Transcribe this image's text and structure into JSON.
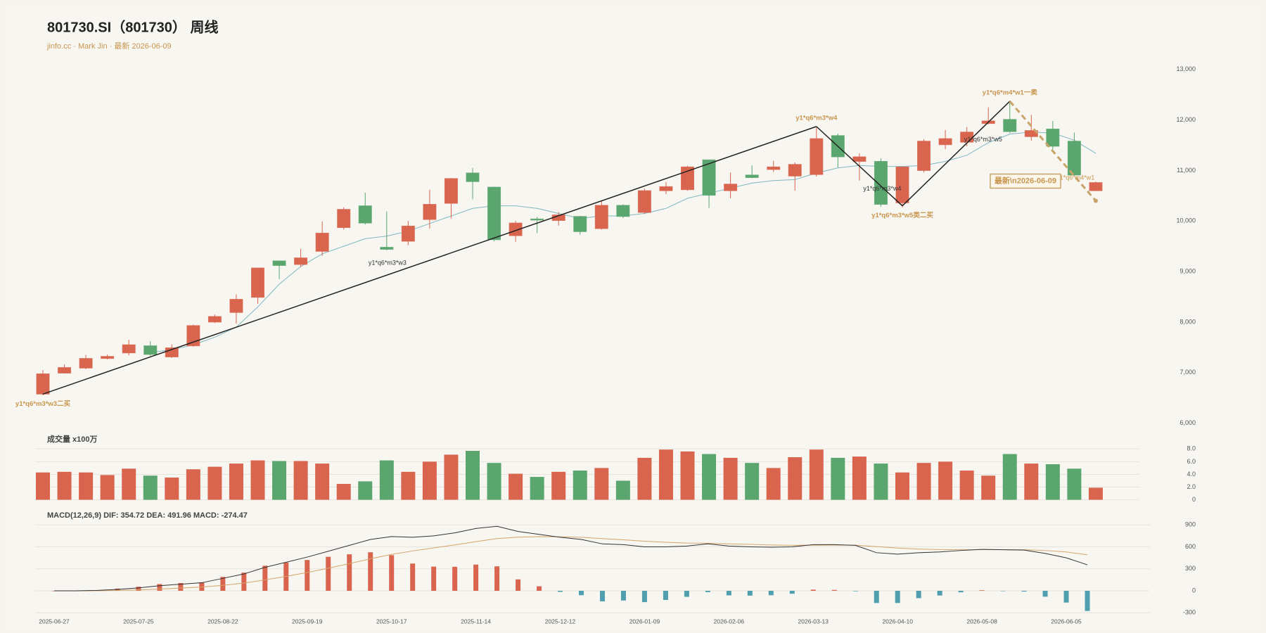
{
  "chart_data": [
    {
      "type": "candlestick",
      "title": "801730.SI（801730） 周线",
      "subtitle": "jinfo.cc · Mark Jin · 最新 2026-06-09",
      "categories": [
        "2025-06-27",
        null,
        null,
        null,
        "2025-07-25",
        null,
        null,
        null,
        "2025-08-22",
        null,
        null,
        null,
        "2025-09-19",
        null,
        null,
        null,
        "2025-10-17",
        null,
        null,
        null,
        "2025-11-14",
        null,
        null,
        null,
        "2025-12-12",
        null,
        null,
        null,
        "2026-01-09",
        null,
        null,
        null,
        "2026-02-06",
        null,
        null,
        null,
        "2026-03-13",
        null,
        null,
        null,
        "2026-04-10",
        null,
        null,
        null,
        "2026-05-08",
        null,
        null,
        null,
        "2026-06-05",
        null
      ],
      "open": [
        6575,
        6990,
        7090,
        7280,
        7390,
        7530,
        7310,
        7530,
        8000,
        8190,
        8490,
        9210,
        9140,
        9400,
        9870,
        10300,
        9480,
        9600,
        10030,
        10350,
        10950,
        10670,
        9710,
        10040,
        10010,
        10090,
        9850,
        10310,
        10170,
        10600,
        10620,
        11210,
        10600,
        10910,
        11020,
        10890,
        10920,
        11690,
        11180,
        11180,
        10360,
        11000,
        11510,
        11560,
        11930,
        12010,
        11670,
        11820,
        11580,
        10600
      ],
      "close": [
        6975,
        7100,
        7280,
        7320,
        7550,
        7360,
        7490,
        7930,
        8110,
        8450,
        9070,
        9120,
        9270,
        9760,
        10230,
        9960,
        9440,
        9900,
        10330,
        10840,
        10780,
        9630,
        9960,
        10020,
        10120,
        9790,
        10310,
        10090,
        10600,
        10680,
        11070,
        10510,
        10730,
        10860,
        11070,
        11120,
        11630,
        11270,
        11270,
        10330,
        11070,
        11580,
        11630,
        11760,
        11980,
        11770,
        11790,
        11480,
        10910,
        10760
      ],
      "high": [
        7050,
        7160,
        7350,
        7360,
        7650,
        7620,
        7560,
        7950,
        8150,
        8550,
        9070,
        9220,
        9450,
        9990,
        10270,
        10560,
        10190,
        10000,
        10620,
        10850,
        11050,
        10680,
        10000,
        10080,
        10180,
        10100,
        10400,
        10330,
        10640,
        10770,
        11090,
        11210,
        10960,
        11100,
        11190,
        11160,
        11850,
        11730,
        11340,
        11240,
        11080,
        11620,
        11800,
        11860,
        12250,
        12380,
        12100,
        11980,
        11750,
        10780
      ],
      "low": [
        6550,
        6980,
        7070,
        7260,
        7340,
        7330,
        7290,
        7510,
        7980,
        7970,
        8360,
        8850,
        9090,
        9310,
        9830,
        9930,
        9420,
        9520,
        9850,
        10050,
        10430,
        9600,
        9590,
        9760,
        9910,
        9730,
        9830,
        10060,
        10140,
        10530,
        10600,
        10260,
        10450,
        10850,
        10970,
        10600,
        10880,
        11060,
        10800,
        10280,
        10270,
        10960,
        11420,
        11480,
        11910,
        11740,
        11590,
        11420,
        10900,
        10600
      ],
      "ma": [
        null,
        null,
        null,
        null,
        null,
        7400,
        7450,
        7550,
        7700,
        7900,
        8300,
        8750,
        9100,
        9350,
        9500,
        9650,
        9700,
        9800,
        9950,
        10100,
        10250,
        10300,
        10300,
        10250,
        10150,
        10050,
        10100,
        10100,
        10150,
        10250,
        10450,
        10550,
        10650,
        10750,
        10800,
        10820,
        10950,
        11050,
        11100,
        11080,
        11080,
        11100,
        11180,
        11300,
        11550,
        11720,
        11760,
        11740,
        11600,
        11340
      ],
      "up_color": "#d9654f",
      "down_color": "#5aa66e",
      "ma_color": "#7fb8c0",
      "ylim": [
        6000,
        13000
      ],
      "yticks": [
        {
          "value": 6000,
          "label": "6,000"
        },
        {
          "value": 7000,
          "label": "7,000"
        },
        {
          "value": 8000,
          "label": "8,000"
        },
        {
          "value": 9000,
          "label": "9,000"
        },
        {
          "value": 10000,
          "label": "10,000"
        },
        {
          "value": 11000,
          "label": "11,000"
        },
        {
          "value": 12000,
          "label": "12,000"
        },
        {
          "value": 13000,
          "label": "13,000"
        }
      ],
      "points": [
        {
          "x": 0,
          "y": 6575,
          "label": "y1*q6*m3*w3二买"
        },
        {
          "x": 36,
          "y": 11870,
          "label": "y1*q6*m3*w4"
        },
        {
          "x": 40,
          "y": 10300,
          "label": "y1*q6*m3*w5类二买"
        },
        {
          "x": 45,
          "y": 12370,
          "label": "y1*q6*m4*w1一卖"
        },
        {
          "x": 49,
          "y": 10400
        }
      ],
      "strokes": [
        {
          "label": "y1*q6*m3*w3"
        },
        {
          "label": "y1*q6*m3*w4"
        },
        {
          "label": "y1*q6*m3*w5"
        },
        {
          "label": "y1*q6*m4*w1",
          "style": "dashed"
        }
      ],
      "latest_label": "最新\\n2026-06-09"
    },
    {
      "type": "volume",
      "title": "成交量 x100万",
      "values": [
        4.3,
        4.4,
        4.3,
        3.9,
        4.9,
        3.8,
        3.5,
        4.8,
        5.2,
        5.7,
        6.2,
        6.1,
        6.1,
        5.7,
        2.5,
        2.9,
        6.2,
        4.4,
        6.0,
        7.1,
        7.7,
        5.8,
        4.1,
        3.6,
        4.4,
        4.6,
        5.0,
        3.0,
        6.6,
        7.9,
        7.6,
        7.2,
        6.6,
        5.8,
        5.0,
        6.7,
        7.9,
        6.6,
        6.8,
        5.7,
        4.3,
        5.8,
        6.0,
        4.6,
        3.8,
        7.2,
        5.7,
        5.6,
        4.9,
        1.9
      ],
      "ylim": [
        0,
        8
      ],
      "yticks": [
        0,
        {
          "value": 2,
          "label": "2.0"
        },
        {
          "value": 4,
          "label": "4.0"
        },
        {
          "value": 6,
          "label": "6.0"
        },
        {
          "value": 8,
          "label": "8.0"
        }
      ],
      "grid": true
    },
    {
      "type": "macd",
      "title": "MACD(12,26,9) DIF: 354.72 DEA: 491.96 MACD: -274.47",
      "dif": [
        0,
        0,
        5,
        20,
        40,
        70,
        90,
        110,
        170,
        230,
        320,
        390,
        460,
        540,
        620,
        700,
        740,
        730,
        750,
        790,
        850,
        880,
        810,
        770,
        730,
        700,
        640,
        630,
        600,
        600,
        610,
        640,
        610,
        600,
        595,
        600,
        630,
        630,
        620,
        520,
        500,
        520,
        530,
        550,
        565,
        560,
        555,
        510,
        450,
        354.72
      ],
      "dea": [
        0,
        0,
        1,
        5,
        12,
        24,
        37,
        52,
        75,
        106,
        149,
        197,
        250,
        308,
        371,
        437,
        497,
        544,
        585,
        626,
        671,
        713,
        732,
        739,
        737,
        730,
        712,
        696,
        677,
        662,
        651,
        649,
        641,
        633,
        625,
        620,
        622,
        624,
        623,
        603,
        583,
        570,
        562,
        560,
        561,
        561,
        560,
        550,
        530,
        491.96
      ],
      "macd": [
        0,
        0,
        8,
        30,
        56,
        92,
        106,
        116,
        190,
        248,
        342,
        386,
        420,
        464,
        498,
        526,
        486,
        372,
        330,
        328,
        358,
        334,
        156,
        62,
        -14,
        -60,
        -144,
        -132,
        -154,
        -124,
        -82,
        -18,
        -62,
        -66,
        -60,
        -40,
        16,
        12,
        -6,
        -166,
        -166,
        -100,
        -64,
        -20,
        8,
        -2,
        -10,
        -80,
        -160,
        -274.47
      ],
      "dif_color": "#333333",
      "dea_color": "#d4a46a",
      "up_color": "#d9654f",
      "down_color": "#4f9fae",
      "ylim": [
        -300,
        900
      ],
      "yticks": [
        -300,
        0,
        300,
        600,
        900
      ],
      "grid": true
    }
  ]
}
